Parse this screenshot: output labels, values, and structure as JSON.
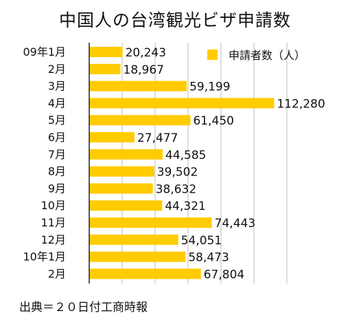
{
  "chart_data": {
    "type": "bar",
    "orientation": "horizontal",
    "title": "中国人の台湾観光ビザ申請数",
    "categories": [
      "09年1月",
      "2月",
      "3月",
      "4月",
      "5月",
      "6月",
      "7月",
      "8月",
      "9月",
      "10月",
      "11月",
      "12月",
      "10年1月",
      "2月"
    ],
    "series": [
      {
        "name": "申請者数（人）",
        "values": [
          20243,
          18967,
          59199,
          112280,
          61450,
          27477,
          44585,
          39502,
          38632,
          44321,
          74443,
          54051,
          58473,
          67804
        ],
        "value_labels": [
          "20,243",
          "18,967",
          "59,199",
          "112,280",
          "61,450",
          "27,477",
          "44,585",
          "39,502",
          "38,632",
          "44,321",
          "74,443",
          "54,051",
          "58,473",
          "67,804"
        ]
      }
    ],
    "xlim": [
      0,
      120000
    ],
    "x_gridlines": [
      20000,
      40000,
      60000,
      80000,
      100000,
      120000
    ],
    "grid": true,
    "legend": "top-right",
    "colors": {
      "bar": "#FFCC00",
      "grid": "#bbbbbb",
      "axis": "#222222"
    }
  },
  "footer": {
    "source": "出典＝２０日付工商時報"
  }
}
